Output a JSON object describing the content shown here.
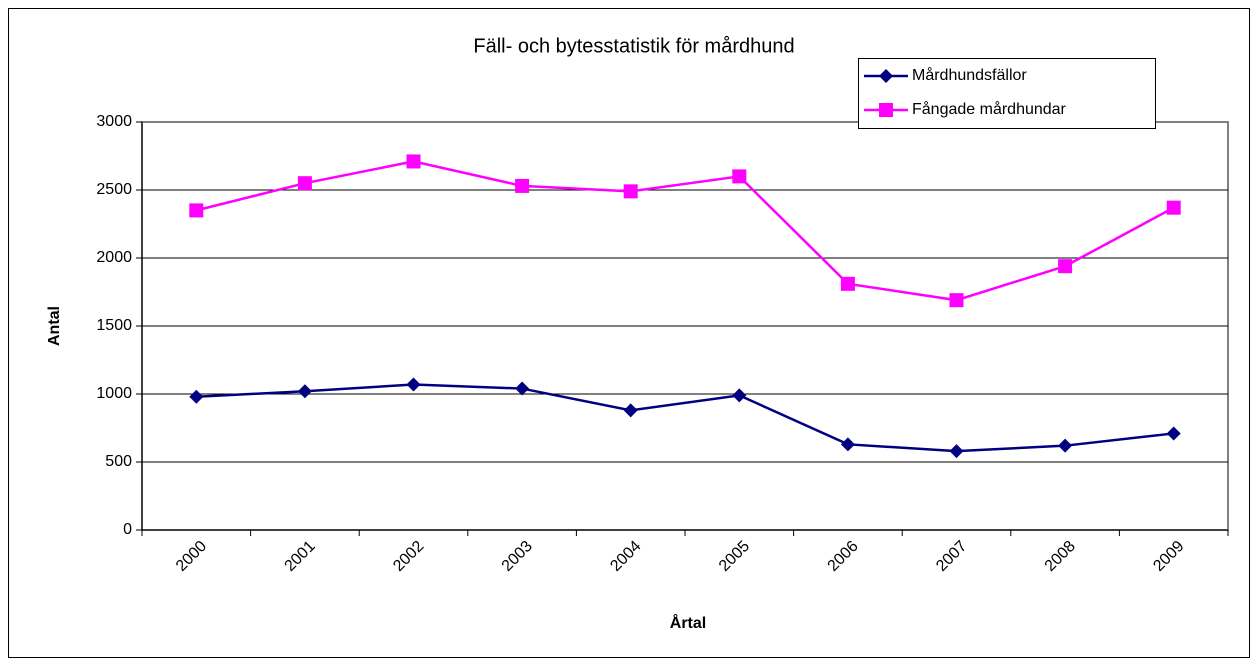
{
  "chart_data": {
    "type": "line",
    "title": "Fäll- och bytesstatistik för mårdhund",
    "x_label": "Årtal",
    "y_label": "Antal",
    "categories": [
      "2000",
      "2001",
      "2002",
      "2003",
      "2004",
      "2005",
      "2006",
      "2007",
      "2008",
      "2009"
    ],
    "series": [
      {
        "name": "Mårdhundsfällor",
        "color": "#000080",
        "marker": "diamond",
        "values": [
          980,
          1020,
          1070,
          1040,
          880,
          990,
          630,
          580,
          620,
          710
        ]
      },
      {
        "name": "Fångade mårdhundar",
        "color": "#ff00ff",
        "marker": "square",
        "values": [
          2350,
          2550,
          2710,
          2530,
          2490,
          2600,
          1810,
          1690,
          1940,
          2370
        ]
      }
    ],
    "ylim": [
      0,
      3000
    ],
    "yticks": [
      0,
      500,
      1000,
      1500,
      2000,
      2500,
      3000
    ],
    "grid": true,
    "legend": "upper right"
  }
}
